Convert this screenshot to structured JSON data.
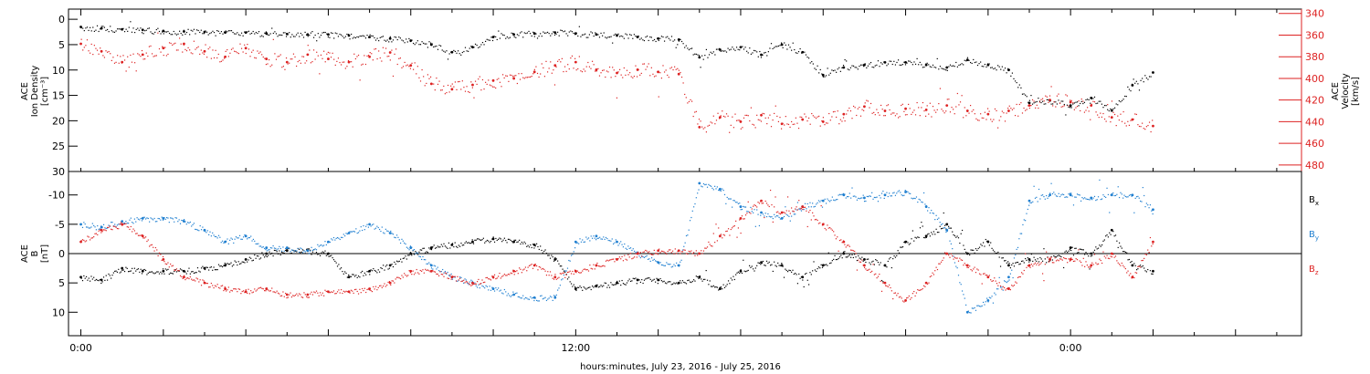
{
  "chart_data": [
    {
      "type": "scatter",
      "ylabel_left": [
        "ACE",
        "Ion Density",
        "[cm⁻³]"
      ],
      "ylabel_right": [
        "ACE",
        "Velocity",
        "[km/s]"
      ],
      "ylim_left": [
        -2,
        30
      ],
      "yticks_left": [
        "0",
        "5",
        "10",
        "15",
        "20",
        "25",
        "30"
      ],
      "ylim_right": [
        336,
        486
      ],
      "yticks_right": [
        "340",
        "360",
        "380",
        "400",
        "420",
        "440",
        "460",
        "480"
      ],
      "series": [
        {
          "name": "",
          "axis": "left",
          "color": "#000000",
          "points": [
            [
              0,
              1.5
            ],
            [
              0.5,
              1.8
            ],
            [
              1,
              2.0
            ],
            [
              1.5,
              2.1
            ],
            [
              2,
              2.3
            ],
            [
              2.5,
              2.4
            ],
            [
              3,
              2.5
            ],
            [
              3.5,
              2.6
            ],
            [
              4,
              2.6
            ],
            [
              4.5,
              2.8
            ],
            [
              5,
              2.9
            ],
            [
              5.5,
              3.0
            ],
            [
              6,
              3.0
            ],
            [
              6.5,
              3.2
            ],
            [
              7,
              3.5
            ],
            [
              7.5,
              3.8
            ],
            [
              8,
              4.2
            ],
            [
              8.5,
              5.0
            ],
            [
              9,
              6.5
            ],
            [
              9.5,
              5.5
            ],
            [
              10,
              3.5
            ],
            [
              10.5,
              3.0
            ],
            [
              11,
              2.8
            ],
            [
              11.5,
              2.6
            ],
            [
              12,
              2.8
            ],
            [
              12.5,
              3.0
            ],
            [
              13,
              3.2
            ],
            [
              13.5,
              3.5
            ],
            [
              14,
              3.8
            ],
            [
              14.5,
              4.0
            ],
            [
              15,
              7.5
            ],
            [
              15.5,
              6.0
            ],
            [
              16,
              5.5
            ],
            [
              16.5,
              7.0
            ],
            [
              17,
              5.0
            ],
            [
              17.5,
              6.5
            ],
            [
              18,
              11.0
            ],
            [
              18.5,
              9.5
            ],
            [
              19,
              9.0
            ],
            [
              19.5,
              8.5
            ],
            [
              20,
              8.5
            ],
            [
              20.5,
              9.0
            ],
            [
              21,
              9.5
            ],
            [
              21.5,
              8.0
            ],
            [
              22,
              9.0
            ],
            [
              22.5,
              10.0
            ],
            [
              23,
              16.5
            ],
            [
              23.5,
              16.0
            ],
            [
              24,
              17.0
            ],
            [
              24.5,
              15.5
            ],
            [
              25,
              18.0
            ],
            [
              25.5,
              13.0
            ],
            [
              26,
              10.5
            ]
          ]
        },
        {
          "name": "",
          "axis": "right",
          "color": "#dd2222",
          "points": [
            [
              0,
              368
            ],
            [
              0.5,
              375
            ],
            [
              1,
              385
            ],
            [
              1.5,
              378
            ],
            [
              2,
              372
            ],
            [
              2.5,
              368
            ],
            [
              3,
              375
            ],
            [
              3.5,
              380
            ],
            [
              4,
              372
            ],
            [
              4.5,
              382
            ],
            [
              5,
              385
            ],
            [
              5.5,
              378
            ],
            [
              6,
              382
            ],
            [
              6.5,
              385
            ],
            [
              7,
              380
            ],
            [
              7.5,
              376
            ],
            [
              8,
              388
            ],
            [
              8.5,
              405
            ],
            [
              9,
              410
            ],
            [
              9.5,
              406
            ],
            [
              10,
              402
            ],
            [
              10.5,
              400
            ],
            [
              11,
              394
            ],
            [
              11.5,
              388
            ],
            [
              12,
              385
            ],
            [
              12.5,
              392
            ],
            [
              13,
              395
            ],
            [
              13.5,
              392
            ],
            [
              14,
              394
            ],
            [
              14.5,
              396
            ],
            [
              15,
              445
            ],
            [
              15.5,
              436
            ],
            [
              16,
              440
            ],
            [
              16.5,
              434
            ],
            [
              17,
              442
            ],
            [
              17.5,
              438
            ],
            [
              18,
              440
            ],
            [
              18.5,
              433
            ],
            [
              19,
              426
            ],
            [
              19.5,
              430
            ],
            [
              20,
              428
            ],
            [
              20.5,
              429
            ],
            [
              21,
              425
            ],
            [
              21.5,
              430
            ],
            [
              22,
              433
            ],
            [
              22.5,
              430
            ],
            [
              23,
              425
            ],
            [
              23.5,
              420
            ],
            [
              24,
              422
            ],
            [
              24.5,
              425
            ],
            [
              25,
              436
            ],
            [
              25.5,
              438
            ],
            [
              26,
              444
            ]
          ]
        }
      ]
    },
    {
      "type": "scatter",
      "ylabel_left": [
        "ACE",
        "B",
        "[nT]"
      ],
      "ylim": [
        -14,
        14
      ],
      "yticks": [
        "-10",
        "-5",
        "0",
        "5",
        "10"
      ],
      "xlabel": "hours:minutes, July 23, 2016 - July 25, 2016",
      "xtick_labels": [
        {
          "hours": 0,
          "label": "0:00"
        },
        {
          "hours": 12,
          "label": "12:00"
        },
        {
          "hours": 24,
          "label": "0:00"
        }
      ],
      "xlim_hours": [
        -0.3,
        29.6
      ],
      "legend": [
        {
          "base": "B",
          "sub": "x",
          "color": "#000000"
        },
        {
          "base": "B",
          "sub": "y",
          "color": "#1f7fd0"
        },
        {
          "base": "B",
          "sub": "z",
          "color": "#dd2222"
        }
      ],
      "legend_placement": "right",
      "series": [
        {
          "name": "Bx",
          "color": "#000000",
          "points": [
            [
              0,
              4
            ],
            [
              0.5,
              4.5
            ],
            [
              1,
              2.5
            ],
            [
              1.5,
              3
            ],
            [
              2,
              3
            ],
            [
              2.5,
              3
            ],
            [
              3,
              2.5
            ],
            [
              3.5,
              2
            ],
            [
              4,
              1
            ],
            [
              4.5,
              0
            ],
            [
              5,
              -0.5
            ],
            [
              5.5,
              -0.5
            ],
            [
              6,
              0
            ],
            [
              6.5,
              4
            ],
            [
              7,
              3
            ],
            [
              7.5,
              2
            ],
            [
              8,
              0
            ],
            [
              8.5,
              -1
            ],
            [
              9,
              -1.5
            ],
            [
              9.5,
              -2
            ],
            [
              10,
              -2.5
            ],
            [
              10.5,
              -2
            ],
            [
              11,
              -1.5
            ],
            [
              11.5,
              1
            ],
            [
              12,
              6
            ],
            [
              12.5,
              5.5
            ],
            [
              13,
              5
            ],
            [
              13.5,
              4.5
            ],
            [
              14,
              4.5
            ],
            [
              14.5,
              5
            ],
            [
              15,
              4
            ],
            [
              15.5,
              6
            ],
            [
              16,
              3
            ],
            [
              16.5,
              1.5
            ],
            [
              17,
              2
            ],
            [
              17.5,
              4
            ],
            [
              18,
              2
            ],
            [
              18.5,
              0
            ],
            [
              19,
              1
            ],
            [
              19.5,
              2
            ],
            [
              20,
              -2
            ],
            [
              20.5,
              -3
            ],
            [
              21,
              -5
            ],
            [
              21.5,
              0
            ],
            [
              22,
              -2
            ],
            [
              22.5,
              2
            ],
            [
              23,
              1
            ],
            [
              23.5,
              1
            ],
            [
              24,
              -1
            ],
            [
              24.5,
              0
            ],
            [
              25,
              -4
            ],
            [
              25.5,
              2
            ],
            [
              26,
              3
            ]
          ]
        },
        {
          "name": "By",
          "color": "#1f7fd0",
          "points": [
            [
              0,
              -5
            ],
            [
              0.5,
              -4.5
            ],
            [
              1,
              -5.5
            ],
            [
              1.5,
              -6
            ],
            [
              2,
              -6
            ],
            [
              2.5,
              -5.5
            ],
            [
              3,
              -4
            ],
            [
              3.5,
              -2
            ],
            [
              4,
              -3
            ],
            [
              4.5,
              -1
            ],
            [
              5,
              -1
            ],
            [
              5.5,
              -0.5
            ],
            [
              6,
              -2
            ],
            [
              6.5,
              -3.5
            ],
            [
              7,
              -5
            ],
            [
              7.5,
              -3.5
            ],
            [
              8,
              -1
            ],
            [
              8.5,
              2
            ],
            [
              9,
              4
            ],
            [
              9.5,
              5
            ],
            [
              10,
              6
            ],
            [
              10.5,
              7
            ],
            [
              11,
              7.5
            ],
            [
              11.5,
              7.5
            ],
            [
              12,
              -2
            ],
            [
              12.5,
              -3
            ],
            [
              13,
              -2
            ],
            [
              13.5,
              0
            ],
            [
              14,
              1.5
            ],
            [
              14.5,
              2
            ],
            [
              15,
              -12
            ],
            [
              15.5,
              -11
            ],
            [
              16,
              -8
            ],
            [
              16.5,
              -7
            ],
            [
              17,
              -6
            ],
            [
              17.5,
              -8
            ],
            [
              18,
              -9
            ],
            [
              18.5,
              -10
            ],
            [
              19,
              -9.5
            ],
            [
              19.5,
              -10
            ],
            [
              20,
              -10.5
            ],
            [
              20.5,
              -8
            ],
            [
              21,
              -4
            ],
            [
              21.5,
              10
            ],
            [
              22,
              8
            ],
            [
              22.5,
              4
            ],
            [
              23,
              -9
            ],
            [
              23.5,
              -10
            ],
            [
              24,
              -10
            ],
            [
              24.5,
              -9.5
            ],
            [
              25,
              -10
            ],
            [
              25.5,
              -10
            ],
            [
              26,
              -7.5
            ]
          ]
        },
        {
          "name": "Bz",
          "color": "#dd2222",
          "points": [
            [
              0,
              -2
            ],
            [
              0.5,
              -4
            ],
            [
              1,
              -5
            ],
            [
              1.5,
              -3
            ],
            [
              2,
              1
            ],
            [
              2.5,
              4
            ],
            [
              3,
              5
            ],
            [
              3.5,
              6
            ],
            [
              4,
              6.5
            ],
            [
              4.5,
              6
            ],
            [
              5,
              7
            ],
            [
              5.5,
              7
            ],
            [
              6,
              6.5
            ],
            [
              6.5,
              6.5
            ],
            [
              7,
              6
            ],
            [
              7.5,
              5
            ],
            [
              8,
              3
            ],
            [
              8.5,
              3
            ],
            [
              9,
              4
            ],
            [
              9.5,
              5
            ],
            [
              10,
              4
            ],
            [
              10.5,
              3
            ],
            [
              11,
              2
            ],
            [
              11.5,
              4
            ],
            [
              12,
              3
            ],
            [
              12.5,
              2
            ],
            [
              13,
              1
            ],
            [
              13.5,
              0
            ],
            [
              14,
              -0.5
            ],
            [
              14.5,
              -0.5
            ],
            [
              15,
              0
            ],
            [
              15.5,
              -3
            ],
            [
              16,
              -6
            ],
            [
              16.5,
              -9
            ],
            [
              17,
              -7
            ],
            [
              17.5,
              -8
            ],
            [
              18,
              -5
            ],
            [
              18.5,
              -2
            ],
            [
              19,
              2
            ],
            [
              19.5,
              5
            ],
            [
              20,
              8
            ],
            [
              20.5,
              5
            ],
            [
              21,
              0
            ],
            [
              21.5,
              2
            ],
            [
              22,
              4
            ],
            [
              22.5,
              6
            ],
            [
              23,
              2
            ],
            [
              23.5,
              1
            ],
            [
              24,
              1
            ],
            [
              24.5,
              2
            ],
            [
              25,
              0
            ],
            [
              25.5,
              4
            ],
            [
              26,
              -2
            ]
          ]
        }
      ]
    }
  ]
}
